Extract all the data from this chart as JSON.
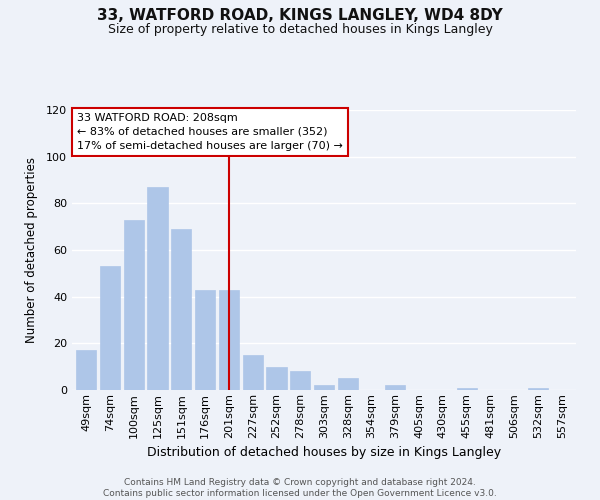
{
  "title": "33, WATFORD ROAD, KINGS LANGLEY, WD4 8DY",
  "subtitle": "Size of property relative to detached houses in Kings Langley",
  "xlabel": "Distribution of detached houses by size in Kings Langley",
  "ylabel": "Number of detached properties",
  "footer_line1": "Contains HM Land Registry data © Crown copyright and database right 2024.",
  "footer_line2": "Contains public sector information licensed under the Open Government Licence v3.0.",
  "categories": [
    "49sqm",
    "74sqm",
    "100sqm",
    "125sqm",
    "151sqm",
    "176sqm",
    "201sqm",
    "227sqm",
    "252sqm",
    "278sqm",
    "303sqm",
    "328sqm",
    "354sqm",
    "379sqm",
    "405sqm",
    "430sqm",
    "455sqm",
    "481sqm",
    "506sqm",
    "532sqm",
    "557sqm"
  ],
  "values": [
    17,
    53,
    73,
    87,
    69,
    43,
    43,
    15,
    10,
    8,
    2,
    5,
    0,
    2,
    0,
    0,
    1,
    0,
    0,
    1,
    0
  ],
  "bar_color": "#aec6e8",
  "bar_edge_color": "#aec6e8",
  "highlight_line_color": "#cc0000",
  "highlight_bin_index": 6,
  "annotation_line1": "33 WATFORD ROAD: 208sqm",
  "annotation_line2": "← 83% of detached houses are smaller (352)",
  "annotation_line3": "17% of semi-detached houses are larger (70) →",
  "annotation_box_facecolor": "#ffffff",
  "annotation_box_edgecolor": "#cc0000",
  "ylim": [
    0,
    120
  ],
  "yticks": [
    0,
    20,
    40,
    60,
    80,
    100,
    120
  ],
  "background_color": "#eef2f9",
  "grid_color": "#ffffff",
  "title_fontsize": 11,
  "subtitle_fontsize": 9,
  "ylabel_fontsize": 8.5,
  "xlabel_fontsize": 9,
  "tick_fontsize": 8,
  "annotation_fontsize": 8,
  "footer_fontsize": 6.5
}
